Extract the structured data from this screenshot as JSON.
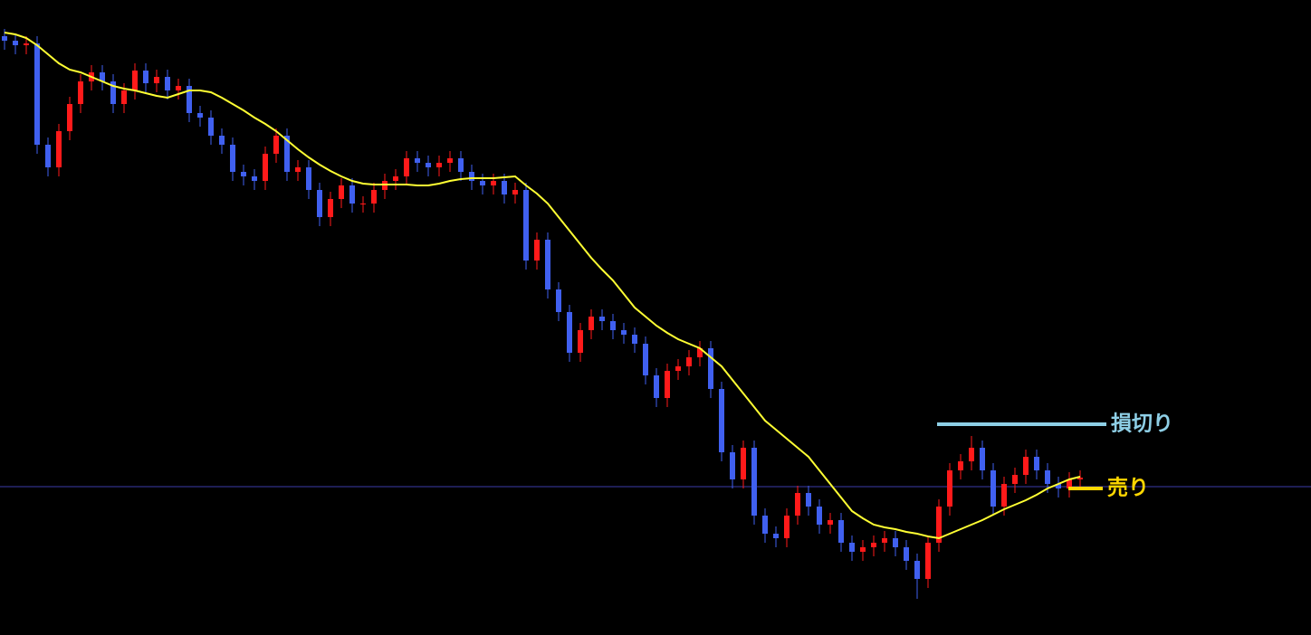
{
  "chart_data": {
    "type": "candlestick",
    "ylim": [
      0,
      702
    ],
    "up_color": "#ff1a1a",
    "down_color": "#4060f0",
    "open": [
      662,
      657,
      652,
      654,
      542,
      517,
      557,
      587,
      612,
      622,
      612,
      587,
      602,
      624,
      610,
      617,
      602,
      607,
      577,
      572,
      552,
      542,
      512,
      507,
      502,
      532,
      552,
      512,
      517,
      492,
      462,
      482,
      497,
      477,
      477,
      492,
      502,
      507,
      527,
      522,
      517,
      522,
      527,
      512,
      502,
      497,
      502,
      487,
      492,
      414,
      437,
      382,
      357,
      312,
      337,
      352,
      347,
      337,
      332,
      322,
      287,
      262,
      292,
      297,
      307,
      317,
      272,
      202,
      172,
      207,
      132,
      112,
      107,
      132,
      157,
      142,
      122,
      127,
      102,
      92,
      97,
      102,
      107,
      97,
      82,
      62,
      102,
      142,
      182,
      192,
      207,
      182,
      142,
      167,
      177,
      197,
      182,
      167,
      162,
      172
    ],
    "high": [
      670,
      665,
      662,
      662,
      550,
      565,
      595,
      620,
      630,
      630,
      620,
      610,
      632,
      632,
      625,
      625,
      615,
      615,
      585,
      580,
      560,
      550,
      520,
      515,
      540,
      560,
      560,
      525,
      525,
      500,
      490,
      505,
      505,
      485,
      500,
      510,
      515,
      535,
      535,
      530,
      530,
      535,
      535,
      520,
      510,
      510,
      510,
      500,
      500,
      445,
      445,
      390,
      365,
      345,
      360,
      360,
      355,
      345,
      340,
      330,
      295,
      300,
      305,
      315,
      325,
      325,
      280,
      210,
      215,
      215,
      140,
      120,
      140,
      165,
      165,
      150,
      135,
      135,
      110,
      105,
      110,
      115,
      115,
      105,
      90,
      110,
      150,
      190,
      200,
      220,
      215,
      190,
      175,
      185,
      205,
      205,
      190,
      175,
      180,
      182
    ],
    "low": [
      647,
      642,
      642,
      532,
      507,
      507,
      547,
      577,
      602,
      602,
      577,
      577,
      592,
      600,
      600,
      592,
      592,
      567,
      562,
      542,
      532,
      502,
      497,
      492,
      492,
      522,
      502,
      502,
      482,
      452,
      452,
      472,
      467,
      467,
      467,
      482,
      492,
      497,
      512,
      507,
      507,
      512,
      502,
      492,
      487,
      487,
      477,
      477,
      404,
      404,
      372,
      347,
      302,
      302,
      327,
      337,
      327,
      322,
      312,
      277,
      252,
      252,
      282,
      287,
      297,
      262,
      192,
      162,
      162,
      122,
      102,
      97,
      97,
      122,
      132,
      112,
      112,
      92,
      82,
      82,
      87,
      92,
      87,
      72,
      40,
      52,
      92,
      132,
      172,
      182,
      172,
      132,
      132,
      157,
      167,
      172,
      157,
      152,
      152,
      162
    ],
    "close": [
      657,
      652,
      654,
      542,
      517,
      557,
      587,
      612,
      622,
      612,
      587,
      602,
      624,
      610,
      617,
      602,
      607,
      577,
      572,
      552,
      542,
      512,
      507,
      502,
      532,
      552,
      512,
      517,
      492,
      462,
      482,
      497,
      477,
      477,
      492,
      502,
      507,
      527,
      522,
      517,
      522,
      527,
      512,
      502,
      497,
      502,
      487,
      492,
      414,
      437,
      382,
      357,
      312,
      337,
      352,
      347,
      337,
      332,
      322,
      287,
      262,
      292,
      297,
      307,
      317,
      272,
      202,
      172,
      207,
      132,
      112,
      107,
      132,
      157,
      142,
      122,
      127,
      102,
      92,
      97,
      102,
      107,
      97,
      82,
      62,
      102,
      142,
      182,
      192,
      207,
      182,
      142,
      167,
      177,
      197,
      182,
      167,
      162,
      172,
      174
    ],
    "moving_average": {
      "color": "#ffff33",
      "values": [
        666,
        664,
        660,
        652,
        642,
        632,
        625,
        622,
        617,
        612,
        607,
        604,
        602,
        599,
        596,
        594,
        598,
        602,
        602,
        600,
        594,
        587,
        580,
        572,
        565,
        557,
        547,
        537,
        528,
        520,
        513,
        507,
        502,
        499,
        498,
        498,
        498,
        498,
        497,
        497,
        499,
        502,
        504,
        505,
        505,
        505,
        506,
        507,
        497,
        488,
        477,
        462,
        447,
        432,
        417,
        404,
        392,
        377,
        362,
        352,
        342,
        334,
        327,
        322,
        317,
        307,
        297,
        282,
        267,
        252,
        237,
        227,
        217,
        207,
        197,
        182,
        167,
        152,
        137,
        129,
        122,
        119,
        117,
        114,
        112,
        109,
        107,
        112,
        117,
        122,
        127,
        133,
        139,
        144,
        149,
        155,
        162,
        167,
        172,
        175
      ]
    },
    "reference_line": {
      "value": 164,
      "color": "#3c3ca8"
    },
    "annotations": [
      {
        "label": "損切り",
        "value": 233,
        "color": "#8ecfe6"
      },
      {
        "label": "売り",
        "value": 162,
        "color": "#ffd700"
      }
    ]
  }
}
